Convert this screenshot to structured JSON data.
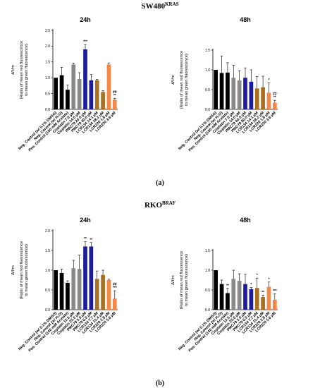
{
  "sections": [
    {
      "title_main": "SW480",
      "title_sup": "KRAS",
      "label": "(a)"
    },
    {
      "title_main": "RKO",
      "title_sup": "BRAF",
      "label": "(b)"
    }
  ],
  "y_axis_symbol": "ΔΨm",
  "y_axis_label": "(Ratio of mean red fluorescence to mean green fluorescence)",
  "chart_data": [
    {
      "type": "bar",
      "title": "24h",
      "ylim": [
        0.0,
        2.5
      ],
      "yticks": [
        "0.0",
        "0.5",
        "1.0",
        "1.5",
        "2.0",
        "2.5"
      ],
      "categories": [
        "Neg. Control (w/ 0.1% DMSO)",
        "Neg. Control (w/ H₂O)",
        "Pos. Control (100 mM Acetate)",
        "Cisplatin 7.0 µM",
        "Cisplatin 14.0 µM",
        "PMC79 20.0 µM",
        "PMC79 40.0 µM",
        "LCR134 14.1 µM",
        "LCR134 28.2 µM",
        "LCR220 1.8 µM",
        "LCR220 3.6 µM"
      ],
      "values": [
        1.0,
        1.08,
        0.62,
        1.42,
        0.96,
        1.9,
        0.92,
        0.92,
        0.55,
        1.42,
        0.3
      ],
      "errors": [
        0.0,
        0.25,
        0.15,
        0.04,
        0.2,
        0.15,
        0.18,
        0.03,
        0.04,
        0.05,
        0.05
      ],
      "colors": [
        "#000000",
        "#000000",
        "#000000",
        "#888888",
        "#888888",
        "#1c1c9c",
        "#1c1c9c",
        "#a87020",
        "#a87020",
        "#f4884a",
        "#f4884a"
      ],
      "significance": [
        "",
        "",
        "",
        "",
        "",
        "***",
        "",
        "",
        "",
        "",
        "##\n**"
      ]
    },
    {
      "type": "bar",
      "title": "48h",
      "ylim": [
        0.0,
        1.5
      ],
      "yticks": [
        "0.0",
        "0.5",
        "1.0",
        "1.5"
      ],
      "categories": [
        "Neg. Control (w/ 0.1% DMSO)",
        "Neg. Control (w/ H₂O)",
        "Pos. Control (100 mM Acetate)",
        "Cisplatin 7.0 µM",
        "Cisplatin 14.0 µM",
        "PMC79 40.0 µM",
        "PMC79 80.0 µM",
        "LCR134 14.1 µM",
        "LCR134 28.2 µM",
        "LCR220 1.8 µM",
        "LCR220 3.6 µM"
      ],
      "values": [
        1.0,
        0.92,
        0.93,
        0.8,
        0.73,
        0.8,
        0.7,
        0.53,
        0.56,
        0.42,
        0.17
      ],
      "errors": [
        0.0,
        0.43,
        0.25,
        0.32,
        0.25,
        0.25,
        0.3,
        0.3,
        0.28,
        0.25,
        0.06
      ],
      "colors": [
        "#000000",
        "#000000",
        "#000000",
        "#888888",
        "#888888",
        "#1c1c9c",
        "#1c1c9c",
        "#a87020",
        "#a87020",
        "#f4884a",
        "#f4884a"
      ],
      "significance": [
        "",
        "",
        "",
        "",
        "",
        "",
        "",
        "",
        "",
        "*",
        "##\n**"
      ]
    },
    {
      "type": "bar",
      "title": "24h",
      "ylim": [
        0.0,
        2.0
      ],
      "yticks": [
        "0.0",
        "0.5",
        "1.0",
        "1.5",
        "2.0"
      ],
      "categories": [
        "Neg. Control (w/ 0.1% DMSO)",
        "Neg. Control (w/ H₂O)",
        "Pos. Control (140 mM Acetate)",
        "Cisplatin 12.5 µM",
        "Cisplatin 25.0 µM",
        "PMC79 3.0 µM",
        "PMC79 6.0 µM",
        "LCR134 7.7 µM",
        "LCR134 15.4 µM",
        "LCR220 2.8 µM",
        "LCR220 5.6 µM"
      ],
      "values": [
        1.0,
        0.93,
        0.68,
        1.05,
        1.03,
        1.6,
        1.6,
        0.78,
        0.88,
        0.75,
        0.28
      ],
      "errors": [
        0.0,
        0.1,
        0.05,
        0.2,
        0.35,
        0.12,
        0.1,
        0.2,
        0.12,
        0.02,
        0.2
      ],
      "colors": [
        "#000000",
        "#000000",
        "#000000",
        "#888888",
        "#888888",
        "#1c1c9c",
        "#1c1c9c",
        "#a87020",
        "#a87020",
        "#f4884a",
        "#f4884a"
      ],
      "significance": [
        "",
        "",
        "",
        "",
        "",
        "**",
        "**",
        "",
        "",
        "",
        "##\n***"
      ]
    },
    {
      "type": "bar",
      "title": "48h",
      "ylim": [
        0.0,
        1.5
      ],
      "yticks": [
        "0.0",
        "0.5",
        "1.0",
        "1.5"
      ],
      "categories": [
        "Neg. Control (w/ 0.1% DMSO)",
        "Neg. Control (w/ H₂O)",
        "Pos. Control (140 mM Acetate)",
        "Cisplatin 12.5 µM",
        "Cisplatin 25.0 µM",
        "PMC79 3.0 µM",
        "PMC79 6.0 µM",
        "LCR134 7.7 µM",
        "LCR134 15.4 µM",
        "LCR220 2.8 µM",
        "LCR220 5.6 µM"
      ],
      "values": [
        1.0,
        0.65,
        0.42,
        0.78,
        0.73,
        0.65,
        0.52,
        0.55,
        0.32,
        0.58,
        0.25
      ],
      "errors": [
        0.0,
        0.1,
        0.12,
        0.22,
        0.18,
        0.25,
        0.04,
        0.25,
        0.05,
        0.12,
        0.15
      ],
      "colors": [
        "#000000",
        "#000000",
        "#000000",
        "#888888",
        "#888888",
        "#1c1c9c",
        "#1c1c9c",
        "#a87020",
        "#a87020",
        "#f4884a",
        "#f4884a"
      ],
      "significance": [
        "",
        "",
        "**",
        "",
        "",
        "",
        "*",
        "*",
        "**",
        "*",
        "***"
      ]
    }
  ]
}
